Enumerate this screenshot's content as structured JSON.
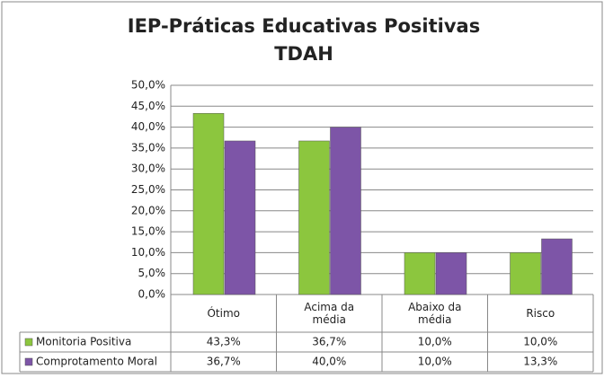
{
  "chart_data": {
    "type": "bar",
    "title": "IEP-Práticas Educativas Positivas",
    "subtitle": "TDAH",
    "categories": [
      "Ótimo",
      "Acima da média",
      "Abaixo da média",
      "Risco"
    ],
    "series": [
      {
        "name": "Monitoria Positiva",
        "color": "#8cc63e",
        "values": [
          43.3,
          36.7,
          10.0,
          10.0
        ],
        "value_labels": [
          "43,3%",
          "36,7%",
          "10,0%",
          "10,0%"
        ]
      },
      {
        "name": "Comprotamento Moral",
        "color": "#7d55a7",
        "values": [
          36.7,
          40.0,
          10.0,
          13.3
        ],
        "value_labels": [
          "36,7%",
          "40,0%",
          "10,0%",
          "13,3%"
        ]
      }
    ],
    "ylim": [
      0,
      50
    ],
    "yticks": [
      {
        "value": 0,
        "label": "0,0%"
      },
      {
        "value": 5,
        "label": "5,0%"
      },
      {
        "value": 10,
        "label": "10,0%"
      },
      {
        "value": 15,
        "label": "15,0%"
      },
      {
        "value": 20,
        "label": "20,0%"
      },
      {
        "value": 25,
        "label": "25,0%"
      },
      {
        "value": 30,
        "label": "30,0%"
      },
      {
        "value": 35,
        "label": "35,0%"
      },
      {
        "value": 40,
        "label": "40,0%"
      },
      {
        "value": 45,
        "label": "45,0%"
      },
      {
        "value": 50,
        "label": "50,0%"
      }
    ],
    "grid": true
  }
}
